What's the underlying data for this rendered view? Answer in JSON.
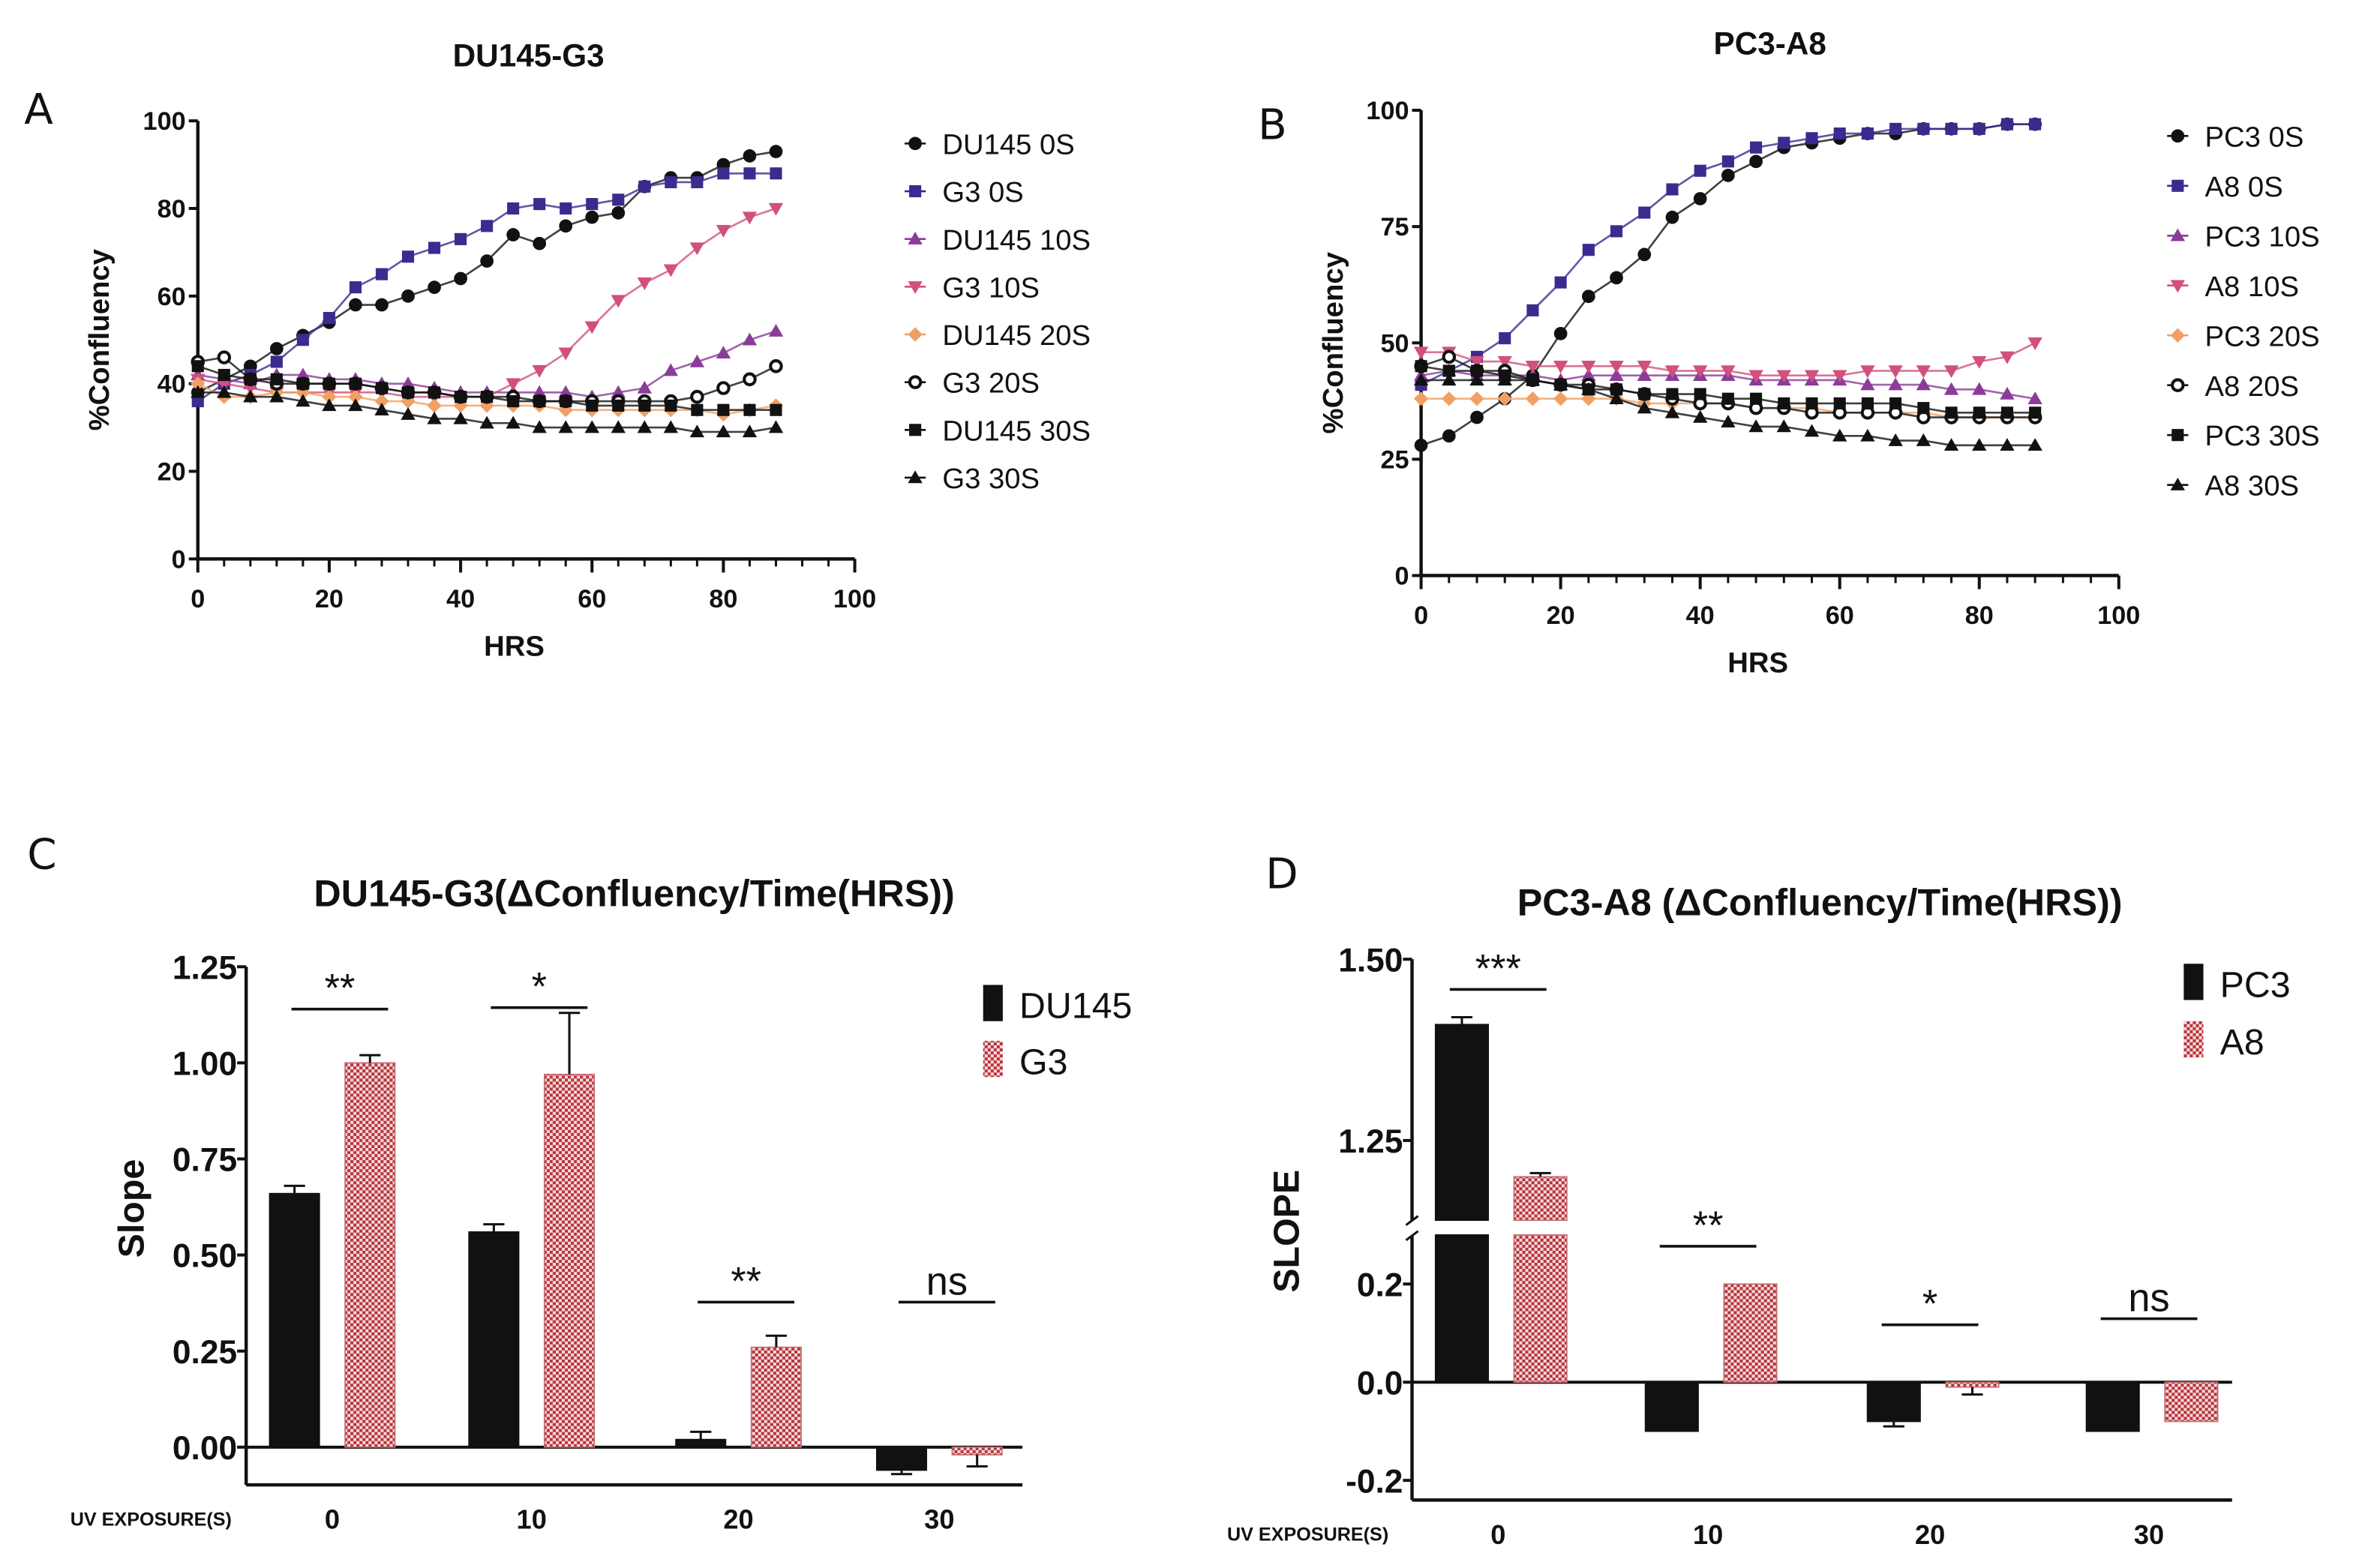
{
  "panel_labels": [
    "A",
    "B",
    "C",
    "D"
  ],
  "colors": {
    "black": "#111111",
    "dark_purple": "#3d2a8f",
    "purple": "#8a3c98",
    "pink": "#d2507c",
    "orange": "#f0a064",
    "hatch_red": "#b8323a"
  },
  "chart_data": [
    {
      "panel": "A",
      "type": "line",
      "title": "DU145-G3",
      "xlabel": "HRS",
      "ylabel": "%Confluency",
      "xlim": [
        0,
        100
      ],
      "ylim": [
        0,
        100
      ],
      "xticks": [
        0,
        20,
        40,
        60,
        80,
        100
      ],
      "yticks": [
        0,
        20,
        40,
        60,
        80,
        100
      ],
      "grid": false,
      "legend": "right",
      "x": [
        0,
        4,
        8,
        12,
        16,
        20,
        24,
        28,
        32,
        36,
        40,
        44,
        48,
        52,
        56,
        60,
        64,
        68,
        72,
        76,
        80,
        84,
        88
      ],
      "series": [
        {
          "name": "DU145 0S",
          "marker": "circle",
          "color": "#111111",
          "values": [
            38,
            41,
            44,
            48,
            51,
            54,
            58,
            58,
            60,
            62,
            64,
            68,
            74,
            72,
            76,
            78,
            79,
            85,
            87,
            87,
            90,
            92,
            93
          ]
        },
        {
          "name": "G3 0S",
          "marker": "square",
          "color": "#3d2a8f",
          "values": [
            36,
            40,
            42,
            45,
            50,
            55,
            62,
            65,
            69,
            71,
            73,
            76,
            80,
            81,
            80,
            81,
            82,
            85,
            86,
            86,
            88,
            88,
            88
          ]
        },
        {
          "name": "DU145 10S",
          "marker": "triangle",
          "color": "#8a3c98",
          "values": [
            42,
            41,
            40,
            42,
            42,
            41,
            41,
            40,
            40,
            39,
            38,
            38,
            38,
            38,
            38,
            37,
            38,
            39,
            43,
            45,
            47,
            50,
            52
          ]
        },
        {
          "name": "G3 10S",
          "marker": "triangle-down",
          "color": "#d2507c",
          "values": [
            41,
            40,
            39,
            38,
            38,
            38,
            38,
            38,
            37,
            37,
            37,
            37,
            40,
            43,
            47,
            53,
            59,
            63,
            66,
            71,
            75,
            78,
            80
          ]
        },
        {
          "name": "DU145 20S",
          "marker": "diamond",
          "color": "#f0a064",
          "values": [
            40,
            37,
            37,
            38,
            38,
            37,
            37,
            36,
            36,
            35,
            35,
            35,
            35,
            35,
            34,
            34,
            34,
            34,
            34,
            34,
            33,
            34,
            35
          ]
        },
        {
          "name": "G3 20S",
          "marker": "open-circle",
          "color": "#111111",
          "values": [
            45,
            46,
            41,
            40,
            40,
            40,
            40,
            39,
            38,
            38,
            37,
            37,
            37,
            36,
            36,
            36,
            36,
            36,
            36,
            37,
            39,
            41,
            44
          ]
        },
        {
          "name": "DU145 30S",
          "marker": "square",
          "color": "#111111",
          "values": [
            44,
            42,
            41,
            41,
            40,
            40,
            40,
            39,
            38,
            38,
            37,
            37,
            36,
            36,
            36,
            35,
            35,
            35,
            35,
            34,
            34,
            34,
            34
          ]
        },
        {
          "name": "G3 30S",
          "marker": "triangle",
          "color": "#111111",
          "values": [
            38,
            38,
            37,
            37,
            36,
            35,
            35,
            34,
            33,
            32,
            32,
            31,
            31,
            30,
            30,
            30,
            30,
            30,
            30,
            29,
            29,
            29,
            30
          ]
        }
      ]
    },
    {
      "panel": "B",
      "type": "line",
      "title": "PC3-A8",
      "xlabel": "HRS",
      "ylabel": "%Confluency",
      "xlim": [
        0,
        100
      ],
      "ylim": [
        0,
        100
      ],
      "xticks": [
        0,
        20,
        40,
        60,
        80,
        100
      ],
      "yticks": [
        0,
        25,
        50,
        75,
        100
      ],
      "grid": false,
      "legend": "right",
      "x": [
        0,
        4,
        8,
        12,
        16,
        20,
        24,
        28,
        32,
        36,
        40,
        44,
        48,
        52,
        56,
        60,
        64,
        68,
        72,
        76,
        80,
        84,
        88
      ],
      "series": [
        {
          "name": "PC3 0S",
          "marker": "circle",
          "color": "#111111",
          "values": [
            28,
            30,
            34,
            38,
            43,
            52,
            60,
            64,
            69,
            77,
            81,
            86,
            89,
            92,
            93,
            94,
            95,
            95,
            96,
            96,
            96,
            97,
            97
          ]
        },
        {
          "name": "A8 0S",
          "marker": "square",
          "color": "#3d2a8f",
          "values": [
            41,
            44,
            47,
            51,
            57,
            63,
            70,
            74,
            78,
            83,
            87,
            89,
            92,
            93,
            94,
            95,
            95,
            96,
            96,
            96,
            96,
            97,
            97
          ]
        },
        {
          "name": "PC3 10S",
          "marker": "triangle",
          "color": "#8a3c98",
          "values": [
            43,
            44,
            43,
            43,
            43,
            42,
            43,
            43,
            43,
            43,
            43,
            43,
            42,
            42,
            42,
            42,
            41,
            41,
            41,
            40,
            40,
            39,
            38
          ]
        },
        {
          "name": "A8 10S",
          "marker": "triangle-down",
          "color": "#d2507c",
          "values": [
            48,
            48,
            46,
            46,
            45,
            45,
            45,
            45,
            45,
            44,
            44,
            44,
            43,
            43,
            43,
            43,
            44,
            44,
            44,
            44,
            46,
            47,
            50
          ]
        },
        {
          "name": "PC3 20S",
          "marker": "diamond",
          "color": "#f0a064",
          "values": [
            38,
            38,
            38,
            38,
            38,
            38,
            38,
            38,
            37,
            37,
            37,
            37,
            36,
            36,
            36,
            35,
            35,
            35,
            35,
            34,
            34,
            34,
            34
          ]
        },
        {
          "name": "A8 20S",
          "marker": "open-circle",
          "color": "#111111",
          "values": [
            45,
            47,
            44,
            44,
            42,
            41,
            41,
            40,
            39,
            38,
            37,
            37,
            36,
            36,
            35,
            35,
            35,
            35,
            34,
            34,
            34,
            34,
            34
          ]
        },
        {
          "name": "PC3 30S",
          "marker": "square",
          "color": "#111111",
          "values": [
            45,
            44,
            44,
            43,
            42,
            41,
            40,
            40,
            39,
            39,
            39,
            38,
            38,
            37,
            37,
            37,
            37,
            37,
            36,
            35,
            35,
            35,
            35
          ]
        },
        {
          "name": "A8 30S",
          "marker": "triangle",
          "color": "#111111",
          "values": [
            42,
            42,
            42,
            42,
            42,
            41,
            40,
            38,
            36,
            35,
            34,
            33,
            32,
            32,
            31,
            30,
            30,
            29,
            29,
            28,
            28,
            28,
            28
          ]
        }
      ]
    },
    {
      "panel": "C",
      "type": "bar",
      "title": "DU145-G3(ΔConfluency/Time(HRS))",
      "xlabel": "UV EXPOSURE(S)",
      "ylabel": "Slope",
      "categories": [
        "0",
        "10",
        "20",
        "30"
      ],
      "ylim": [
        -0.1,
        1.25
      ],
      "yticks": [
        "0.00",
        "0.25",
        "0.50",
        "0.75",
        "1.00",
        "1.25"
      ],
      "legend": "top-right",
      "series": [
        {
          "name": "DU145",
          "fill": "solid-black",
          "values": [
            0.66,
            0.56,
            0.02,
            -0.06
          ],
          "errors": [
            0.02,
            0.02,
            0.02,
            0.01
          ]
        },
        {
          "name": "G3",
          "fill": "red-checker",
          "values": [
            1.0,
            0.97,
            0.26,
            -0.02
          ],
          "errors": [
            0.02,
            0.16,
            0.03,
            0.03
          ]
        }
      ],
      "significance": [
        "**",
        "*",
        "**",
        "ns"
      ]
    },
    {
      "panel": "D",
      "type": "bar",
      "title": "PC3-A8 (ΔConfluency/Time(HRS))",
      "xlabel": "UV EXPOSURE(S)",
      "ylabel": "SLOPE",
      "categories": [
        "0",
        "10",
        "20",
        "30"
      ],
      "ylim": [
        -0.24,
        1.5
      ],
      "axis_break": [
        0.3,
        1.14
      ],
      "yticks": [
        "-0.2",
        "0.0",
        "0.2",
        "1.25",
        "1.50"
      ],
      "legend": "top-right",
      "series": [
        {
          "name": "PC3",
          "fill": "solid-black",
          "values": [
            1.41,
            -0.1,
            -0.08,
            -0.1
          ],
          "errors": [
            0.01,
            0,
            0.01,
            0
          ]
        },
        {
          "name": "A8",
          "fill": "red-checker",
          "values": [
            1.2,
            0.2,
            -0.01,
            -0.08
          ],
          "errors": [
            0.005,
            0,
            0.015,
            0
          ]
        }
      ],
      "significance": [
        "***",
        "**",
        "*",
        "ns"
      ]
    }
  ]
}
